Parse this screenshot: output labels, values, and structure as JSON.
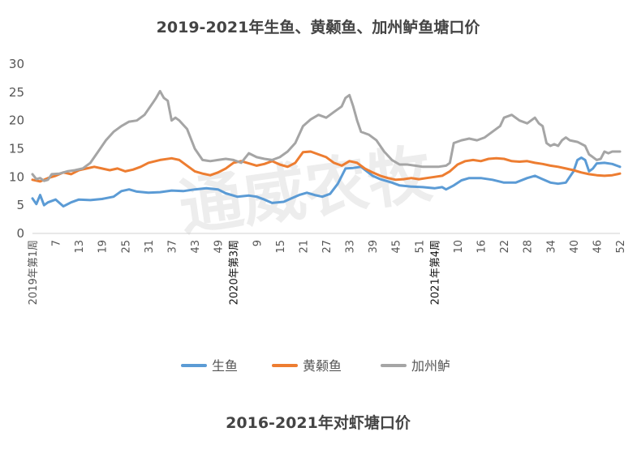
{
  "chart_data": {
    "type": "line",
    "title": "2019-2021年生鱼、黄颡鱼、加州鲈鱼塘口价",
    "ylim": [
      0,
      30
    ],
    "yticks": [
      0,
      5,
      10,
      15,
      20,
      25,
      30
    ],
    "grid": false,
    "legend": "bottom",
    "watermark": "通威农牧",
    "x_ticks": [
      {
        "index": 0,
        "label": "2019年第1周"
      },
      {
        "index": 6,
        "label": "7"
      },
      {
        "index": 12,
        "label": "13"
      },
      {
        "index": 18,
        "label": "19"
      },
      {
        "index": 24,
        "label": "25"
      },
      {
        "index": 30,
        "label": "31"
      },
      {
        "index": 36,
        "label": "37"
      },
      {
        "index": 42,
        "label": "43"
      },
      {
        "index": 48,
        "label": "49"
      },
      {
        "index": 52,
        "label": "2020年第3周"
      },
      {
        "index": 58,
        "label": "9"
      },
      {
        "index": 64,
        "label": "15"
      },
      {
        "index": 70,
        "label": "21"
      },
      {
        "index": 76,
        "label": "27"
      },
      {
        "index": 82,
        "label": "33"
      },
      {
        "index": 88,
        "label": "39"
      },
      {
        "index": 94,
        "label": "45"
      },
      {
        "index": 100,
        "label": "51"
      },
      {
        "index": 104,
        "label": "2021年第4周"
      },
      {
        "index": 110,
        "label": "10"
      },
      {
        "index": 116,
        "label": "16"
      },
      {
        "index": 122,
        "label": "22"
      },
      {
        "index": 128,
        "label": "28"
      },
      {
        "index": 134,
        "label": "34"
      },
      {
        "index": 140,
        "label": "40"
      },
      {
        "index": 146,
        "label": "46"
      },
      {
        "index": 152,
        "label": "52"
      }
    ],
    "series": [
      {
        "name": "生鱼",
        "color": "#5B9BD5",
        "points": [
          [
            0,
            6.2
          ],
          [
            1,
            5.2
          ],
          [
            2,
            6.8
          ],
          [
            3,
            5.0
          ],
          [
            4,
            5.5
          ],
          [
            6,
            6.0
          ],
          [
            8,
            4.8
          ],
          [
            10,
            5.5
          ],
          [
            12,
            6.0
          ],
          [
            15,
            5.9
          ],
          [
            18,
            6.1
          ],
          [
            21,
            6.5
          ],
          [
            23,
            7.5
          ],
          [
            25,
            7.8
          ],
          [
            27,
            7.4
          ],
          [
            30,
            7.2
          ],
          [
            33,
            7.3
          ],
          [
            36,
            7.6
          ],
          [
            39,
            7.5
          ],
          [
            42,
            7.8
          ],
          [
            45,
            8.0
          ],
          [
            48,
            7.8
          ],
          [
            50,
            7.1
          ],
          [
            53,
            6.5
          ],
          [
            56,
            6.7
          ],
          [
            58,
            6.5
          ],
          [
            60,
            6.0
          ],
          [
            62,
            5.4
          ],
          [
            65,
            5.6
          ],
          [
            67,
            6.2
          ],
          [
            69,
            6.8
          ],
          [
            71,
            7.2
          ],
          [
            73,
            6.8
          ],
          [
            75,
            6.5
          ],
          [
            77,
            7.0
          ],
          [
            79,
            8.8
          ],
          [
            81,
            11.5
          ],
          [
            83,
            11.6
          ],
          [
            85,
            11.8
          ],
          [
            88,
            10.2
          ],
          [
            90,
            9.6
          ],
          [
            93,
            9.0
          ],
          [
            95,
            8.5
          ],
          [
            98,
            8.3
          ],
          [
            101,
            8.2
          ],
          [
            104,
            8.0
          ],
          [
            106,
            8.2
          ],
          [
            107,
            7.8
          ],
          [
            109,
            8.5
          ],
          [
            111,
            9.4
          ],
          [
            113,
            9.8
          ],
          [
            116,
            9.8
          ],
          [
            119,
            9.5
          ],
          [
            122,
            9.0
          ],
          [
            125,
            9.0
          ],
          [
            128,
            9.8
          ],
          [
            130,
            10.2
          ],
          [
            132,
            9.6
          ],
          [
            134,
            9.0
          ],
          [
            136,
            8.8
          ],
          [
            138,
            9.0
          ],
          [
            140,
            11.0
          ],
          [
            141,
            13.0
          ],
          [
            142,
            13.4
          ],
          [
            143,
            13.0
          ],
          [
            144,
            11.0
          ],
          [
            145,
            11.5
          ],
          [
            146,
            12.4
          ],
          [
            148,
            12.5
          ],
          [
            150,
            12.3
          ],
          [
            152,
            11.8
          ]
        ]
      },
      {
        "name": "黄颡鱼",
        "color": "#ED7D31",
        "points": [
          [
            0,
            9.5
          ],
          [
            2,
            9.2
          ],
          [
            4,
            9.8
          ],
          [
            6,
            10.2
          ],
          [
            8,
            10.8
          ],
          [
            10,
            10.5
          ],
          [
            12,
            11.2
          ],
          [
            14,
            11.5
          ],
          [
            16,
            11.8
          ],
          [
            18,
            11.5
          ],
          [
            20,
            11.2
          ],
          [
            22,
            11.5
          ],
          [
            24,
            11.0
          ],
          [
            26,
            11.3
          ],
          [
            28,
            11.8
          ],
          [
            30,
            12.5
          ],
          [
            33,
            13.0
          ],
          [
            36,
            13.3
          ],
          [
            38,
            13.0
          ],
          [
            40,
            12.0
          ],
          [
            42,
            11.0
          ],
          [
            44,
            10.6
          ],
          [
            46,
            10.3
          ],
          [
            48,
            10.8
          ],
          [
            50,
            11.5
          ],
          [
            52,
            12.5
          ],
          [
            54,
            12.8
          ],
          [
            56,
            12.4
          ],
          [
            58,
            12.0
          ],
          [
            60,
            12.3
          ],
          [
            62,
            12.8
          ],
          [
            64,
            12.2
          ],
          [
            66,
            11.8
          ],
          [
            68,
            12.5
          ],
          [
            70,
            14.4
          ],
          [
            72,
            14.5
          ],
          [
            74,
            14.0
          ],
          [
            76,
            13.5
          ],
          [
            78,
            12.5
          ],
          [
            80,
            12.0
          ],
          [
            82,
            12.8
          ],
          [
            84,
            12.5
          ],
          [
            86,
            11.5
          ],
          [
            88,
            10.8
          ],
          [
            90,
            10.2
          ],
          [
            92,
            9.8
          ],
          [
            94,
            9.5
          ],
          [
            96,
            9.6
          ],
          [
            98,
            9.8
          ],
          [
            100,
            9.6
          ],
          [
            102,
            9.8
          ],
          [
            104,
            10.0
          ],
          [
            106,
            10.2
          ],
          [
            108,
            11.0
          ],
          [
            110,
            12.2
          ],
          [
            112,
            12.8
          ],
          [
            114,
            13.0
          ],
          [
            116,
            12.8
          ],
          [
            118,
            13.2
          ],
          [
            120,
            13.3
          ],
          [
            122,
            13.2
          ],
          [
            124,
            12.8
          ],
          [
            126,
            12.7
          ],
          [
            128,
            12.8
          ],
          [
            130,
            12.5
          ],
          [
            132,
            12.3
          ],
          [
            134,
            12.0
          ],
          [
            136,
            11.8
          ],
          [
            138,
            11.5
          ],
          [
            140,
            11.2
          ],
          [
            142,
            10.8
          ],
          [
            144,
            10.5
          ],
          [
            146,
            10.3
          ],
          [
            148,
            10.2
          ],
          [
            150,
            10.3
          ],
          [
            152,
            10.6
          ]
        ]
      },
      {
        "name": "加州鲈",
        "color": "#A5A5A5",
        "points": [
          [
            0,
            10.5
          ],
          [
            1,
            9.6
          ],
          [
            2,
            9.8
          ],
          [
            3,
            9.3
          ],
          [
            4,
            9.5
          ],
          [
            5,
            10.5
          ],
          [
            7,
            10.6
          ],
          [
            9,
            11.0
          ],
          [
            11,
            11.2
          ],
          [
            13,
            11.5
          ],
          [
            15,
            12.5
          ],
          [
            17,
            14.5
          ],
          [
            19,
            16.5
          ],
          [
            21,
            18.0
          ],
          [
            23,
            19.0
          ],
          [
            25,
            19.8
          ],
          [
            27,
            20.0
          ],
          [
            29,
            21.0
          ],
          [
            31,
            23.0
          ],
          [
            32,
            24.0
          ],
          [
            33,
            25.2
          ],
          [
            34,
            24.0
          ],
          [
            35,
            23.5
          ],
          [
            36,
            20.0
          ],
          [
            37,
            20.5
          ],
          [
            38,
            20.0
          ],
          [
            40,
            18.5
          ],
          [
            42,
            15.0
          ],
          [
            44,
            13.0
          ],
          [
            46,
            12.8
          ],
          [
            48,
            13.0
          ],
          [
            50,
            13.2
          ],
          [
            52,
            13.0
          ],
          [
            54,
            12.5
          ],
          [
            56,
            14.2
          ],
          [
            58,
            13.5
          ],
          [
            60,
            13.2
          ],
          [
            62,
            13.0
          ],
          [
            64,
            13.5
          ],
          [
            66,
            14.5
          ],
          [
            68,
            16.0
          ],
          [
            70,
            19.0
          ],
          [
            72,
            20.2
          ],
          [
            74,
            21.0
          ],
          [
            76,
            20.5
          ],
          [
            78,
            21.5
          ],
          [
            80,
            22.5
          ],
          [
            81,
            24.0
          ],
          [
            82,
            24.5
          ],
          [
            83,
            22.5
          ],
          [
            84,
            20.0
          ],
          [
            85,
            18.0
          ],
          [
            87,
            17.5
          ],
          [
            89,
            16.5
          ],
          [
            91,
            14.5
          ],
          [
            93,
            13.0
          ],
          [
            95,
            12.2
          ],
          [
            97,
            12.2
          ],
          [
            99,
            12.0
          ],
          [
            101,
            11.8
          ],
          [
            103,
            11.8
          ],
          [
            105,
            11.8
          ],
          [
            107,
            12.0
          ],
          [
            108,
            12.5
          ],
          [
            109,
            16.0
          ],
          [
            111,
            16.5
          ],
          [
            113,
            16.8
          ],
          [
            115,
            16.5
          ],
          [
            117,
            17.0
          ],
          [
            119,
            18.0
          ],
          [
            121,
            19.0
          ],
          [
            122,
            20.5
          ],
          [
            124,
            21.0
          ],
          [
            126,
            20.0
          ],
          [
            128,
            19.5
          ],
          [
            130,
            20.5
          ],
          [
            131,
            19.5
          ],
          [
            132,
            19.0
          ],
          [
            133,
            16.0
          ],
          [
            134,
            15.5
          ],
          [
            135,
            15.8
          ],
          [
            136,
            15.5
          ],
          [
            137,
            16.5
          ],
          [
            138,
            17.0
          ],
          [
            139,
            16.5
          ],
          [
            141,
            16.2
          ],
          [
            143,
            15.5
          ],
          [
            144,
            14.0
          ],
          [
            145,
            13.5
          ],
          [
            146,
            13.0
          ],
          [
            147,
            13.2
          ],
          [
            148,
            14.5
          ],
          [
            149,
            14.2
          ],
          [
            150,
            14.5
          ],
          [
            152,
            14.5
          ]
        ]
      }
    ]
  },
  "footer_title": "2016-2021年对虾塘口价"
}
